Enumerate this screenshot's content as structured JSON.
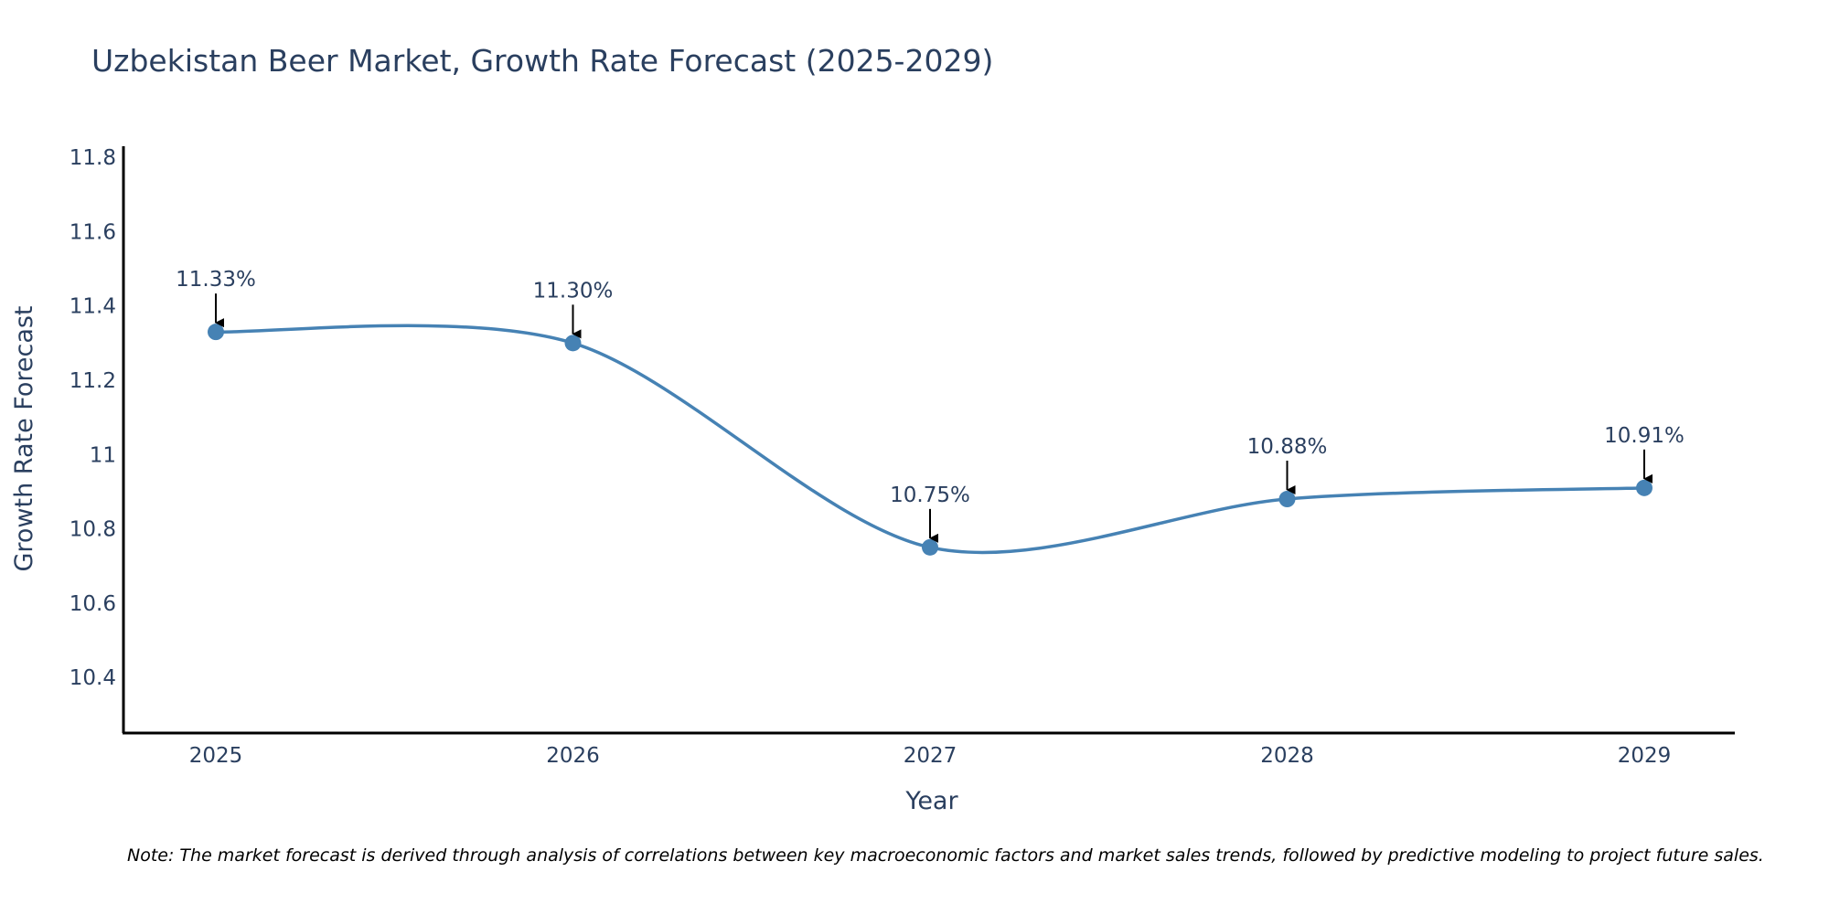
{
  "chart_data": {
    "type": "line",
    "title": "Uzbekistan Beer Market, Growth Rate Forecast (2025-2029)",
    "xlabel": "Year",
    "ylabel": "Growth Rate Forecast",
    "categories": [
      "2025",
      "2026",
      "2027",
      "2028",
      "2029"
    ],
    "values": [
      11.33,
      11.3,
      10.75,
      10.88,
      10.91
    ],
    "data_labels": [
      "11.33%",
      "11.30%",
      "10.75%",
      "10.88%",
      "10.91%"
    ],
    "ylim": [
      10.25,
      11.83
    ],
    "yticks": [
      10.4,
      10.6,
      10.8,
      11,
      11.2,
      11.4,
      11.6,
      11.8
    ],
    "ytick_labels": [
      "10.4",
      "10.6",
      "10.8",
      "11",
      "11.2",
      "11.4",
      "11.6",
      "11.8"
    ],
    "grid": false,
    "legend": "none",
    "line_color": "#4682b4",
    "marker_color": "#4682b4",
    "annotation_arrow_color": "#000000",
    "note": "Note: The market forecast is derived through analysis of correlations between key macroeconomic factors and market sales trends, followed by predictive modeling to project future sales."
  }
}
